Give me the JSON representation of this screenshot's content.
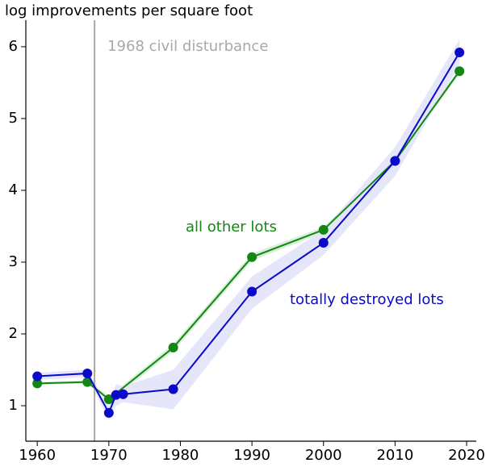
{
  "chart_data": {
    "type": "line",
    "title": "log improvements per square foot",
    "annotation": {
      "text": "1968 civil disturbance",
      "x": 1968,
      "color": "#a8a8a8"
    },
    "xlim": [
      1958.4,
      2021.35
    ],
    "ylim": [
      0.506,
      6.37
    ],
    "xticks": [
      1960,
      1970,
      1980,
      1990,
      2000,
      2010,
      2020
    ],
    "yticks": [
      1,
      2,
      3,
      4,
      5,
      6
    ],
    "series": [
      {
        "name": "all other lots",
        "color": "#138613",
        "band_color": "#d6efd6",
        "x": [
          1960,
          1967,
          1970,
          1979,
          1990,
          2000,
          2010,
          2019
        ],
        "values": [
          1.31,
          1.33,
          1.09,
          1.81,
          3.07,
          3.45,
          4.41,
          5.66
        ],
        "lower": [
          1.29,
          1.31,
          1.05,
          1.76,
          3.02,
          3.41,
          4.37,
          5.62
        ],
        "upper": [
          1.33,
          1.35,
          1.13,
          1.86,
          3.12,
          3.49,
          4.45,
          5.7
        ]
      },
      {
        "name": "totally destroyed lots",
        "color": "#0a0ac8",
        "band_color": "#e6e6fa",
        "x": [
          1960,
          1967,
          1970,
          1971,
          1972,
          1979,
          1990,
          2000,
          2010,
          2019
        ],
        "values": [
          1.41,
          1.45,
          0.9,
          1.15,
          1.16,
          1.23,
          2.59,
          3.27,
          4.41,
          5.92
        ],
        "lower": [
          1.36,
          1.4,
          0.8,
          1.0,
          1.05,
          0.95,
          2.35,
          3.1,
          4.2,
          5.75
        ],
        "upper": [
          1.46,
          1.5,
          1.0,
          1.3,
          1.27,
          1.5,
          2.8,
          3.45,
          4.6,
          6.1
        ]
      }
    ]
  }
}
